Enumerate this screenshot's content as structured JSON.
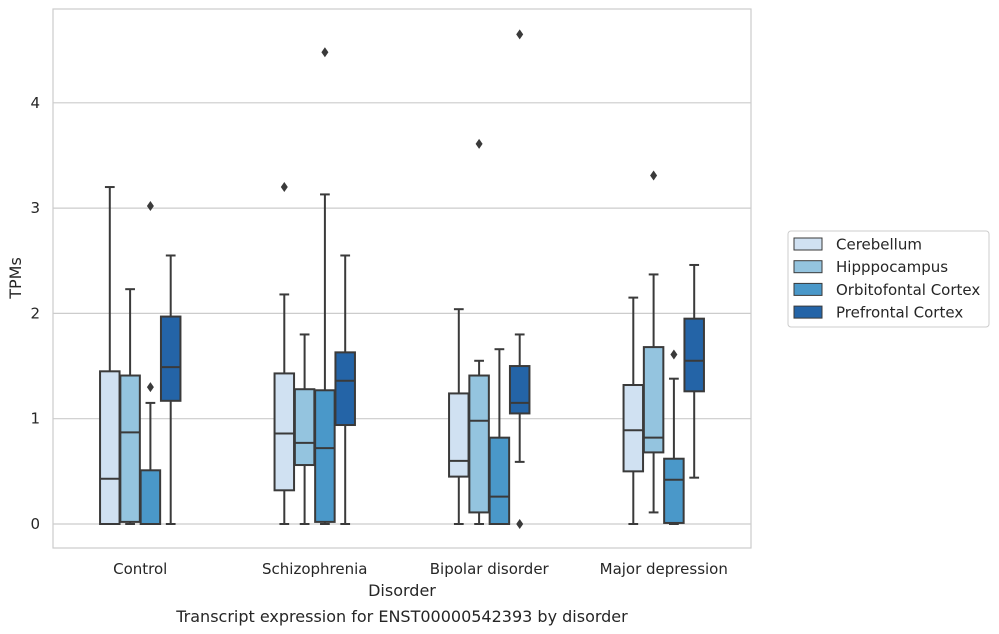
{
  "chart_data": {
    "type": "box",
    "title": "",
    "caption": "Transcript expression for ENST00000542393 by disorder",
    "xlabel": "Disorder",
    "ylabel": "TPMs",
    "ylim": [
      -0.22,
      4.9
    ],
    "yticks": [
      0,
      1,
      2,
      3,
      4
    ],
    "grid": "horizontal",
    "legend_position": "right",
    "categories": [
      "Control",
      "Schizophrenia",
      "Bipolar disorder",
      "Major depression"
    ],
    "series": [
      {
        "name": "Cerebellum",
        "color": "#d0e1f2",
        "boxes": [
          {
            "min": 0,
            "q1": 0,
            "median": 0.43,
            "q3": 1.45,
            "max": 3.2,
            "outliers": []
          },
          {
            "min": 0,
            "q1": 0.32,
            "median": 0.86,
            "q3": 1.43,
            "max": 2.18,
            "outliers": [
              3.2
            ]
          },
          {
            "min": 0,
            "q1": 0.45,
            "median": 0.6,
            "q3": 1.24,
            "max": 2.04,
            "outliers": []
          },
          {
            "min": 0,
            "q1": 0.5,
            "median": 0.89,
            "q3": 1.32,
            "max": 2.15,
            "outliers": []
          }
        ]
      },
      {
        "name": "Hipppocampus",
        "color": "#94c4df",
        "boxes": [
          {
            "min": 0,
            "q1": 0.02,
            "median": 0.87,
            "q3": 1.41,
            "max": 2.23,
            "outliers": []
          },
          {
            "min": 0,
            "q1": 0.56,
            "median": 0.77,
            "q3": 1.28,
            "max": 1.8,
            "outliers": []
          },
          {
            "min": 0,
            "q1": 0.11,
            "median": 0.98,
            "q3": 1.41,
            "max": 1.55,
            "outliers": [
              3.61
            ]
          },
          {
            "min": 0.11,
            "q1": 0.68,
            "median": 0.82,
            "q3": 1.68,
            "max": 2.37,
            "outliers": [
              3.31
            ]
          }
        ]
      },
      {
        "name": "Orbitofontal Cortex",
        "color": "#4a98c9",
        "boxes": [
          {
            "min": 0,
            "q1": 0,
            "median": 0,
            "q3": 0.51,
            "max": 1.15,
            "outliers": [
              1.3,
              3.02
            ]
          },
          {
            "min": 0,
            "q1": 0.02,
            "median": 0.72,
            "q3": 1.27,
            "max": 3.13,
            "outliers": [
              4.48
            ]
          },
          {
            "min": 0,
            "q1": 0,
            "median": 0.26,
            "q3": 0.82,
            "max": 1.66,
            "outliers": []
          },
          {
            "min": 0,
            "q1": 0.01,
            "median": 0.42,
            "q3": 0.62,
            "max": 1.38,
            "outliers": [
              1.61
            ]
          }
        ]
      },
      {
        "name": "Prefrontal Cortex",
        "color": "#2464a7",
        "boxes": [
          {
            "min": 0,
            "q1": 1.17,
            "median": 1.49,
            "q3": 1.97,
            "max": 2.55,
            "outliers": []
          },
          {
            "min": 0,
            "q1": 0.94,
            "median": 1.36,
            "q3": 1.63,
            "max": 2.55,
            "outliers": []
          },
          {
            "min": 0.59,
            "q1": 1.05,
            "median": 1.15,
            "q3": 1.5,
            "max": 1.8,
            "outliers": [
              4.65,
              0
            ]
          },
          {
            "min": 0.44,
            "q1": 1.26,
            "median": 1.55,
            "q3": 1.95,
            "max": 2.46,
            "outliers": []
          }
        ]
      }
    ]
  }
}
